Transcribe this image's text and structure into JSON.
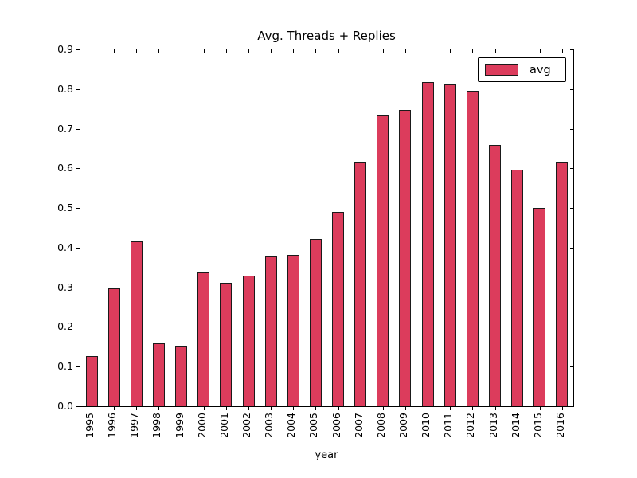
{
  "chart_data": {
    "type": "bar",
    "title": "Avg. Threads + Replies",
    "xlabel": "year",
    "ylabel": "",
    "categories": [
      "1995",
      "1996",
      "1997",
      "1998",
      "1999",
      "2000",
      "2001",
      "2002",
      "2003",
      "2004",
      "2005",
      "2006",
      "2007",
      "2008",
      "2009",
      "2010",
      "2011",
      "2012",
      "2013",
      "2014",
      "2015",
      "2016"
    ],
    "series": [
      {
        "name": "avg",
        "values": [
          0.126,
          0.298,
          0.415,
          0.158,
          0.152,
          0.338,
          0.311,
          0.33,
          0.379,
          0.382,
          0.421,
          0.49,
          0.616,
          0.735,
          0.747,
          0.817,
          0.811,
          0.796,
          0.659,
          0.597,
          0.5,
          0.617
        ]
      }
    ],
    "ylim": [
      0.0,
      0.9
    ],
    "yticks": [
      0.0,
      0.1,
      0.2,
      0.3,
      0.4,
      0.5,
      0.6,
      0.7,
      0.8,
      0.9
    ],
    "grid": false,
    "bar_color": "#DC3C5C",
    "bar_edge_color": "#1a1a1a",
    "legend": {
      "position": "upper right",
      "entries": [
        "avg"
      ]
    }
  }
}
